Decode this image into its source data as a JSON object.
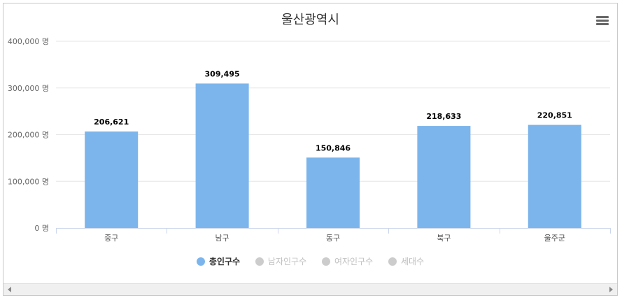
{
  "chart_data": {
    "type": "bar",
    "title": "울산광역시",
    "categories": [
      "중구",
      "남구",
      "동구",
      "북구",
      "울주군"
    ],
    "series": [
      {
        "name": "총인구수",
        "values": [
          206621,
          309495,
          150846,
          218633,
          220851
        ],
        "visible": true
      },
      {
        "name": "남자인구수",
        "visible": false
      },
      {
        "name": "여자인구수",
        "visible": false
      },
      {
        "name": "세대수",
        "visible": false
      }
    ],
    "y_ticks": [
      0,
      100000,
      200000,
      300000,
      400000
    ],
    "y_tick_labels": [
      "0 명",
      "100,000 명",
      "200,000 명",
      "300,000 명",
      "400,000 명"
    ],
    "data_labels": [
      "206,621",
      "309,495",
      "150,846",
      "218,633",
      "220,851"
    ],
    "ylim": [
      0,
      400000
    ],
    "grid": true,
    "legend_position": "bottom-center"
  },
  "colors": {
    "bar": "#7cb5ec",
    "legend_inactive": "#cccccc",
    "grid": "#e6e6e6",
    "axis": "#ccd6eb"
  },
  "toolbar": {
    "menu_icon": "hamburger-menu-icon"
  }
}
